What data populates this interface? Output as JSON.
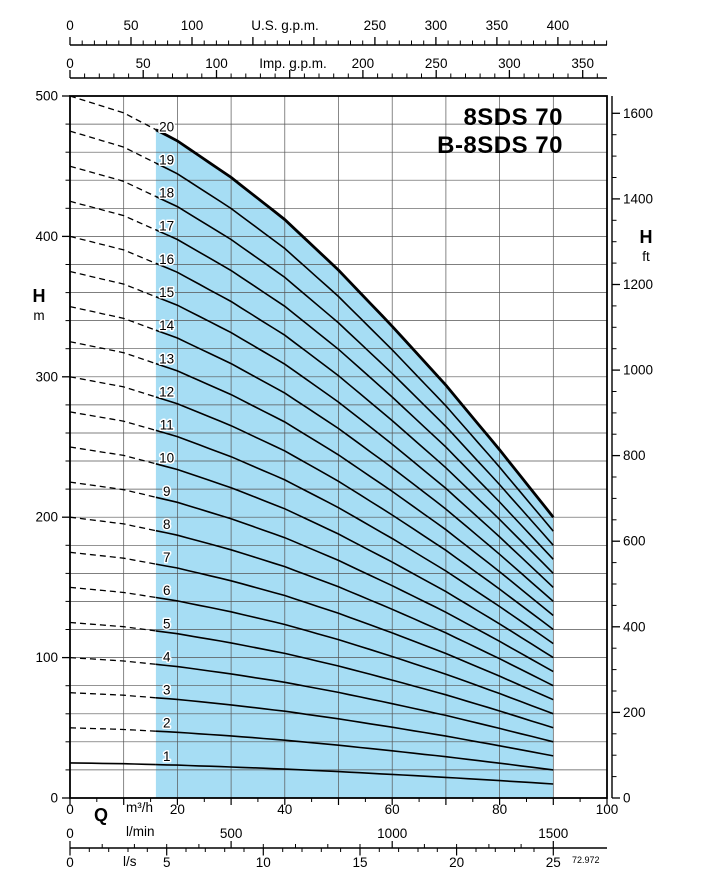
{
  "code": "72.972",
  "chart_data": {
    "type": "line",
    "title": "8SDS 70",
    "subtitle": "B-8SDS 70",
    "description": "Submersible pump head/capacity curves, one curve per number of stages (1-20). Total head of curve n = n x head_per_stage_m at each flow. Dashed segments are the low-flow extrapolation outside the shaded operating range.",
    "xlabel": "Q",
    "ylabel": "H",
    "xlim_m3h": [
      0,
      100
    ],
    "ylim_m": [
      0,
      500
    ],
    "stages": [
      1,
      2,
      3,
      4,
      5,
      6,
      7,
      8,
      9,
      10,
      11,
      12,
      13,
      14,
      15,
      16,
      17,
      18,
      19,
      20
    ],
    "flow_points_m3h": [
      0,
      10,
      20,
      30,
      40,
      50,
      60,
      70,
      80,
      90
    ],
    "head_per_stage_m": [
      25.0,
      24.4,
      23.4,
      22.1,
      20.6,
      18.8,
      16.8,
      14.7,
      12.4,
      10.0
    ],
    "solid_range_m3h": [
      16,
      90
    ],
    "dashed_range_m3h": [
      0,
      16
    ],
    "stage_label_flow_m3h": 18,
    "region_fill": "#a6ddf4",
    "grid": {
      "x_step_m3h": 10,
      "y_step_m": 20
    },
    "legend_position": "none"
  },
  "axes": {
    "us_gpm": {
      "title": "U.S. g.p.m.",
      "ticks": [
        0,
        50,
        100,
        250,
        300,
        350,
        400
      ],
      "minor_step": 10,
      "major_step": 50,
      "per_m3h": 4.4029,
      "max": 440
    },
    "imp_gpm": {
      "title": "Imp. g.p.m.",
      "ticks": [
        0,
        50,
        100,
        200,
        250,
        300,
        350
      ],
      "minor_step": 10,
      "major_step": 50,
      "per_m3h": 3.6662,
      "max": 360
    },
    "h_m": {
      "label": "H",
      "unit": "m",
      "ticks": [
        0,
        100,
        200,
        300,
        400,
        500
      ],
      "minor_step": 20,
      "max": 500
    },
    "h_ft": {
      "label": "H",
      "unit": "ft",
      "ticks": [
        0,
        200,
        400,
        600,
        800,
        1000,
        1200,
        1400,
        1600
      ],
      "minor_step": 50,
      "per_m": 3.2808,
      "max": 1640
    },
    "q_m3h": {
      "label": "Q",
      "unit": "m³/h",
      "ticks": [
        0,
        20,
        40,
        60,
        80,
        100
      ],
      "minor_step": 5,
      "max": 100
    },
    "q_lmin": {
      "unit": "l/min",
      "ticks": [
        0,
        500,
        1000,
        1500
      ],
      "minor_step": 100,
      "major_step": 500,
      "per_m3h": 16.6667,
      "max": 1500
    },
    "q_ls": {
      "unit": "l/s",
      "ticks": [
        0,
        5,
        10,
        15,
        20,
        25
      ],
      "minor_step": 1,
      "major_step": 5,
      "per_m3h": 0.27778,
      "max": 25
    }
  }
}
